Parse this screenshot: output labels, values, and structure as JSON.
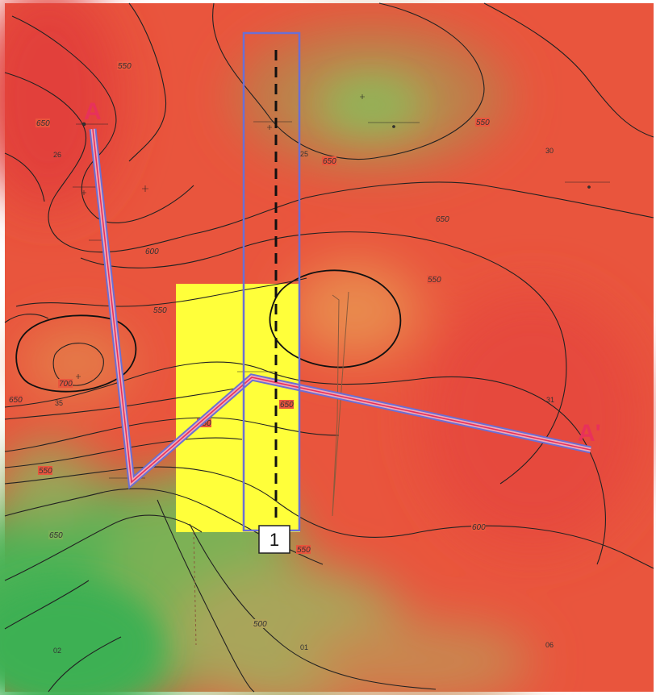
{
  "map": {
    "contour_labels": [
      "550",
      "650",
      "550",
      "600",
      "650",
      "550",
      "550",
      "700",
      "650",
      "550",
      "650",
      "550",
      "650",
      "600",
      "550",
      "500",
      "650"
    ],
    "section_numbers": [
      "26",
      "25",
      "30",
      "35",
      "31",
      "02",
      "01",
      "06"
    ],
    "cross_section": {
      "start_label": "A",
      "end_label": "A'"
    },
    "window_label": "1",
    "colors": {
      "background_red": "#e9553d",
      "dark_red": "#e34a3a",
      "mid_orange": "#e98a4e",
      "olive": "#b6a45a",
      "green": "#3fb153",
      "highlight_yellow": "#ffff3a",
      "outline_blue": "#6b6fd4",
      "line_red": "#e8315a"
    },
    "icons": [
      "well-marker-icon"
    ]
  }
}
